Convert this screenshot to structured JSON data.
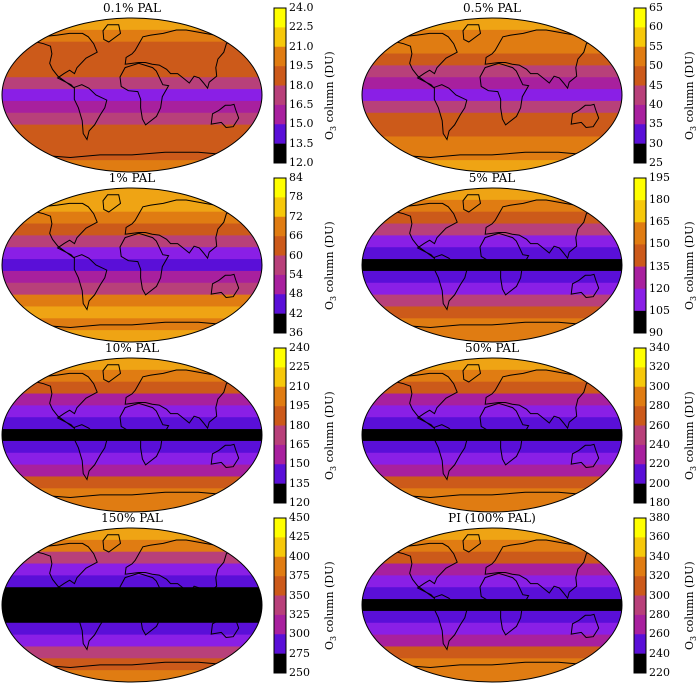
{
  "colormap": [
    "#000000",
    "#5a0fd8",
    "#8a1fe6",
    "#a8209e",
    "#b8407a",
    "#cc5a1a",
    "#e07c12",
    "#efa414",
    "#f6c80a",
    "#ffff00"
  ],
  "continent_color": "#000000",
  "colorbar_label_main": "O",
  "colorbar_label_sub": "3",
  "colorbar_label_rest": " column (DU)",
  "panels": [
    {
      "title": "0.1% PAL",
      "ticks": [
        "24.0",
        "22.5",
        "21.0",
        "19.5",
        "18.0",
        "16.5",
        "15.0",
        "13.5",
        "12.0"
      ],
      "bands": [
        7,
        6,
        5,
        5,
        5,
        4,
        2,
        3,
        4,
        5,
        5,
        5,
        6
      ]
    },
    {
      "title": "0.5% PAL",
      "ticks": [
        "65",
        "60",
        "55",
        "50",
        "45",
        "40",
        "35",
        "30",
        "25"
      ],
      "bands": [
        7,
        6,
        6,
        5,
        4,
        3,
        2,
        4,
        5,
        5,
        6,
        6,
        7
      ]
    },
    {
      "title": "1% PAL",
      "ticks": [
        "84",
        "78",
        "72",
        "66",
        "60",
        "54",
        "48",
        "42",
        "36"
      ],
      "bands": [
        7,
        7,
        6,
        5,
        4,
        2,
        1,
        3,
        4,
        6,
        7,
        6,
        7
      ]
    },
    {
      "title": "5% PAL",
      "ticks": [
        "195",
        "180",
        "165",
        "150",
        "135",
        "120",
        "105",
        "90"
      ],
      "bands": [
        7,
        6,
        5,
        4,
        2,
        1,
        0,
        1,
        2,
        4,
        5,
        6,
        6
      ]
    },
    {
      "title": "10% PAL",
      "ticks": [
        "240",
        "225",
        "210",
        "195",
        "180",
        "165",
        "150",
        "135",
        "120"
      ],
      "bands": [
        7,
        6,
        5,
        3,
        2,
        1,
        0,
        1,
        2,
        3,
        5,
        6,
        6
      ]
    },
    {
      "title": "50% PAL",
      "ticks": [
        "340",
        "320",
        "300",
        "280",
        "260",
        "240",
        "220",
        "200",
        "180"
      ],
      "bands": [
        7,
        6,
        5,
        3,
        2,
        1,
        0,
        1,
        2,
        3,
        5,
        6,
        6
      ]
    },
    {
      "title": "150% PAL",
      "ticks": [
        "450",
        "425",
        "400",
        "375",
        "350",
        "325",
        "300",
        "275",
        "250"
      ],
      "bands": [
        7,
        6,
        4,
        2,
        1,
        0,
        0,
        0,
        1,
        2,
        4,
        5,
        6
      ]
    },
    {
      "title": "PI (100% PAL)",
      "ticks": [
        "380",
        "360",
        "340",
        "320",
        "300",
        "280",
        "260",
        "240",
        "220"
      ],
      "bands": [
        7,
        6,
        5,
        3,
        2,
        1,
        0,
        1,
        2,
        3,
        5,
        6,
        6
      ]
    }
  ]
}
